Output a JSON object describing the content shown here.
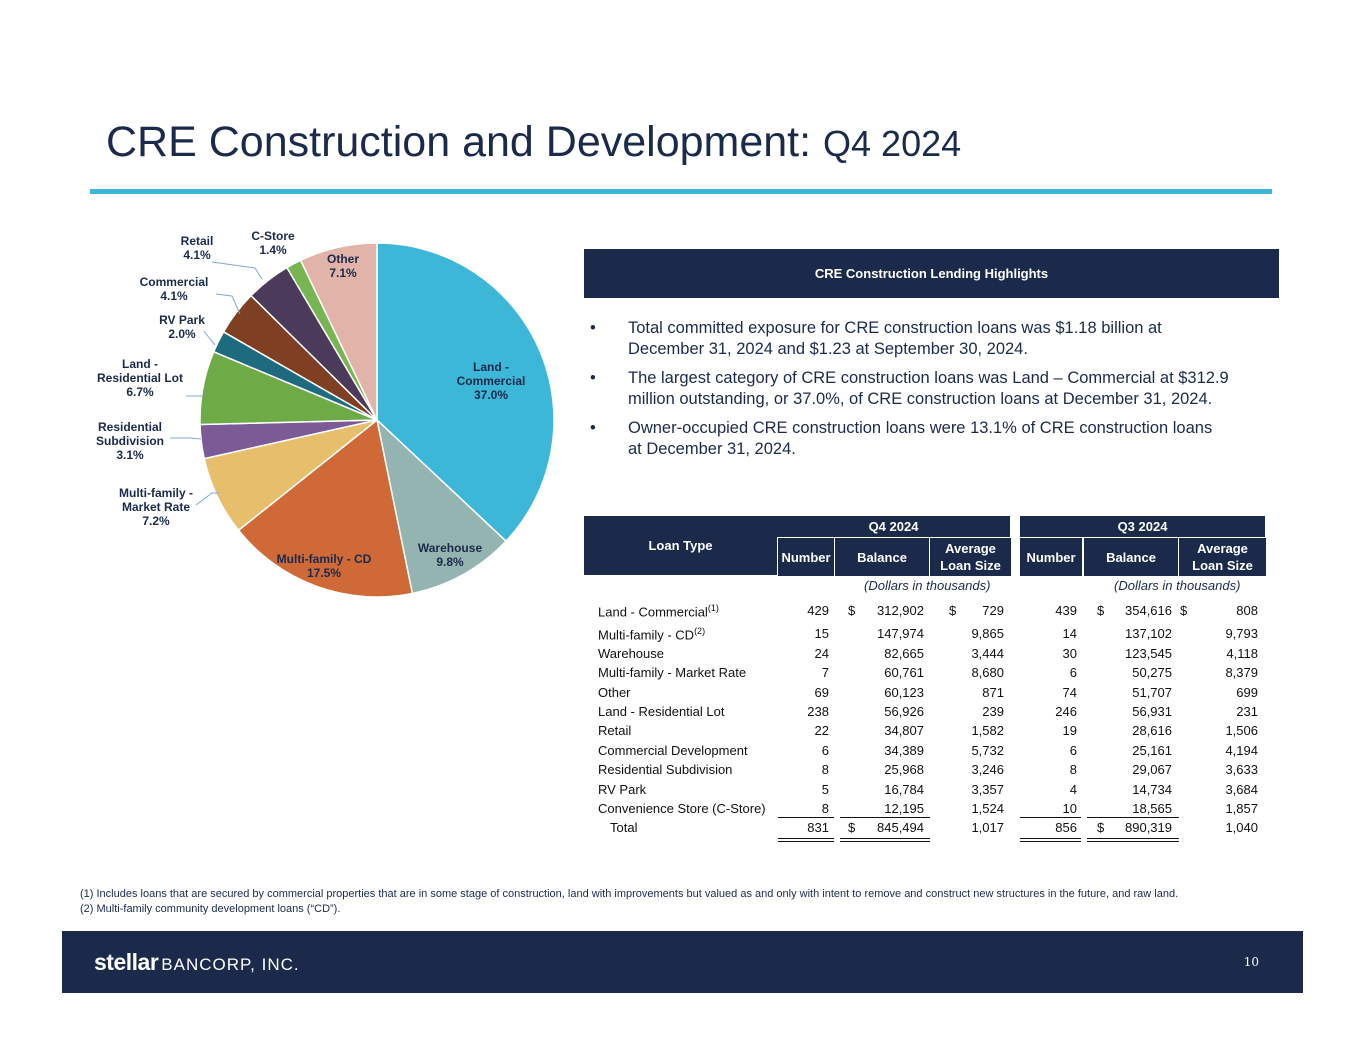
{
  "title_main": "CRE Construction and Development:",
  "title_sub": "Q4 2024",
  "highlights": {
    "header": "CRE Construction Lending Highlights",
    "bullet_char": "•",
    "bullets": [
      "Total committed exposure for CRE construction loans was $1.18 billion at December 31, 2024 and $1.23 at September 30, 2024.",
      "The largest category of CRE construction loans was Land – Commercial at $312.9 million outstanding, or 37.0%, of CRE construction loans at December 31, 2024.",
      "Owner-occupied CRE construction loans were 13.1% of CRE construction loans at December 31, 2024."
    ]
  },
  "chart_data": {
    "type": "pie",
    "slices": [
      {
        "name": "Land - Commercial",
        "label": [
          "Land -",
          "Commercial",
          "37.0%"
        ],
        "value": 37.0,
        "color": "#3cb7d8"
      },
      {
        "name": "Warehouse",
        "label": [
          "Warehouse",
          "9.8%"
        ],
        "value": 9.8,
        "color": "#94b4b2"
      },
      {
        "name": "Multi-family - CD",
        "label": [
          "Multi-family - CD",
          "17.5%"
        ],
        "value": 17.5,
        "color": "#cf6a38"
      },
      {
        "name": "Multi-family - Market Rate",
        "label": [
          "Multi-family -",
          "Market Rate",
          "7.2%"
        ],
        "value": 7.2,
        "color": "#e7be6c"
      },
      {
        "name": "Residential Subdivision",
        "label": [
          "Residential",
          "Subdivision",
          "3.1%"
        ],
        "value": 3.1,
        "color": "#7b5a95"
      },
      {
        "name": "Land - Residential Lot",
        "label": [
          "Land -",
          "Residential Lot",
          "6.7%"
        ],
        "value": 6.7,
        "color": "#6eab47"
      },
      {
        "name": "RV Park",
        "label": [
          "RV Park",
          "2.0%"
        ],
        "value": 2.0,
        "color": "#1e6b7f"
      },
      {
        "name": "Commercial",
        "label": [
          "Commercial",
          "4.1%"
        ],
        "value": 4.1,
        "color": "#7e3f22"
      },
      {
        "name": "Retail",
        "label": [
          "Retail",
          "4.1%"
        ],
        "value": 4.1,
        "color": "#4b3a5a"
      },
      {
        "name": "C-Store",
        "label": [
          "C-Store",
          "1.4%"
        ],
        "value": 1.4,
        "color": "#77b552"
      },
      {
        "name": "Other",
        "label": [
          "Other",
          "7.1%"
        ],
        "value": 7.1,
        "color": "#e2b3a8"
      }
    ]
  },
  "table": {
    "loan_type_header": "Loan Type",
    "q4_header": "Q4 2024",
    "q3_header": "Q3 2024",
    "col_number": "Number",
    "col_balance": "Balance",
    "col_avg_line1": "Average",
    "col_avg_line2": "Loan Size",
    "units_note": "(Dollars in thousands)",
    "dollar": "$",
    "rows": [
      {
        "label": "Land - Commercial",
        "sup": "(1)",
        "q4_number": "429",
        "q4_balance": "312,902",
        "q4_avg": "729",
        "q3_number": "439",
        "q3_balance": "354,616",
        "q3_avg": "808",
        "dollars": true
      },
      {
        "label": "Multi-family - CD",
        "sup": "(2)",
        "q4_number": "15",
        "q4_balance": "147,974",
        "q4_avg": "9,865",
        "q3_number": "14",
        "q3_balance": "137,102",
        "q3_avg": "9,793"
      },
      {
        "label": "Warehouse",
        "q4_number": "24",
        "q4_balance": "82,665",
        "q4_avg": "3,444",
        "q3_number": "30",
        "q3_balance": "123,545",
        "q3_avg": "4,118"
      },
      {
        "label": "Multi-family - Market Rate",
        "q4_number": "7",
        "q4_balance": "60,761",
        "q4_avg": "8,680",
        "q3_number": "6",
        "q3_balance": "50,275",
        "q3_avg": "8,379"
      },
      {
        "label": "Other",
        "q4_number": "69",
        "q4_balance": "60,123",
        "q4_avg": "871",
        "q3_number": "74",
        "q3_balance": "51,707",
        "q3_avg": "699"
      },
      {
        "label": "Land - Residential Lot",
        "q4_number": "238",
        "q4_balance": "56,926",
        "q4_avg": "239",
        "q3_number": "246",
        "q3_balance": "56,931",
        "q3_avg": "231"
      },
      {
        "label": "Retail",
        "q4_number": "22",
        "q4_balance": "34,807",
        "q4_avg": "1,582",
        "q3_number": "19",
        "q3_balance": "28,616",
        "q3_avg": "1,506"
      },
      {
        "label": "Commercial Development",
        "q4_number": "6",
        "q4_balance": "34,389",
        "q4_avg": "5,732",
        "q3_number": "6",
        "q3_balance": "25,161",
        "q3_avg": "4,194"
      },
      {
        "label": "Residential Subdivision",
        "q4_number": "8",
        "q4_balance": "25,968",
        "q4_avg": "3,246",
        "q3_number": "8",
        "q3_balance": "29,067",
        "q3_avg": "3,633"
      },
      {
        "label": "RV Park",
        "q4_number": "5",
        "q4_balance": "16,784",
        "q4_avg": "3,357",
        "q3_number": "4",
        "q3_balance": "14,734",
        "q3_avg": "3,684"
      },
      {
        "label": "Convenience Store (C-Store)",
        "q4_number": "8",
        "q4_balance": "12,195",
        "q4_avg": "1,524",
        "q3_number": "10",
        "q3_balance": "18,565",
        "q3_avg": "1,857"
      },
      {
        "label": "Total",
        "indent": true,
        "q4_number": "831",
        "q4_balance": "845,494",
        "q4_avg": "1,017",
        "q3_number": "856",
        "q3_balance": "890,319",
        "q3_avg": "1,040",
        "dollars": true,
        "total": true
      }
    ]
  },
  "footnotes": [
    "(1) Includes loans that are secured by commercial properties that are in some stage of construction, land with improvements but valued as and only with intent to remove and construct new structures in the future, and raw land.",
    "(2) Multi-family community development loans (“CD”)."
  ],
  "footer": {
    "logo_a": "stellar",
    "logo_b": "BANCORP, INC.",
    "page_number": "10"
  }
}
